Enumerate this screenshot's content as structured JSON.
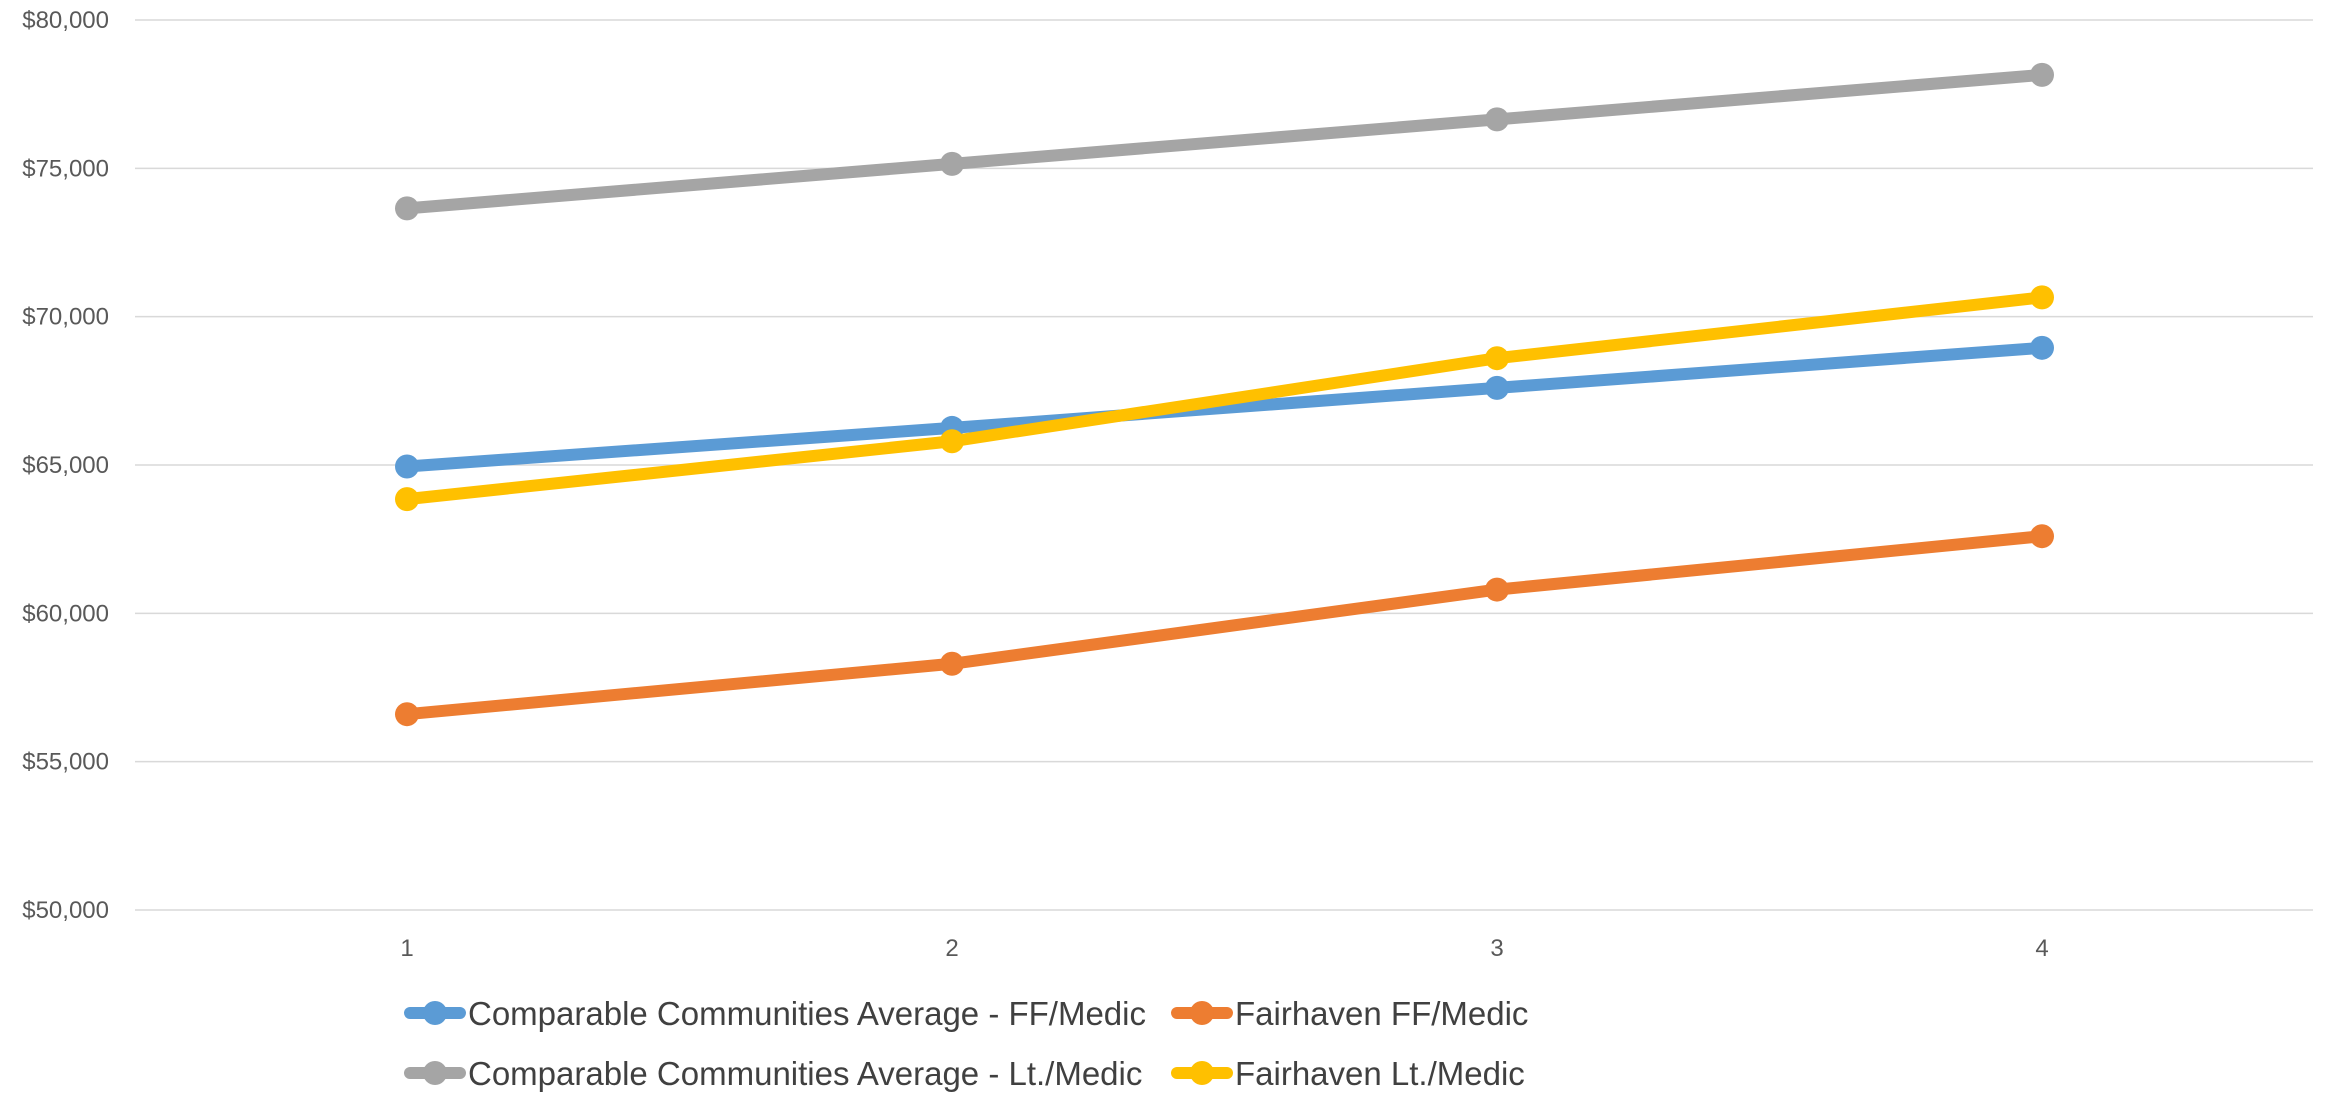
{
  "chart_data": {
    "type": "line",
    "title": "",
    "xlabel": "",
    "ylabel": "",
    "categories": [
      "1",
      "2",
      "3",
      "4"
    ],
    "ylim": [
      50000,
      80000
    ],
    "y_ticks": [
      50000,
      55000,
      60000,
      65000,
      70000,
      75000,
      80000
    ],
    "y_tick_labels": [
      "$50,000",
      "$55,000",
      "$60,000",
      "$65,000",
      "$70,000",
      "$75,000",
      "$80,000"
    ],
    "grid": "horizontal",
    "legend_position": "bottom",
    "series": [
      {
        "name": "Comparable Communities Average - FF/Medic",
        "color": "#5B9BD5",
        "values": [
          64950,
          66250,
          67600,
          68950
        ]
      },
      {
        "name": "Fairhaven FF/Medic",
        "color": "#ED7D31",
        "values": [
          56600,
          58300,
          60800,
          62600
        ]
      },
      {
        "name": "Comparable Communities Average - Lt./Medic",
        "color": "#A5A5A5",
        "values": [
          73650,
          75150,
          76650,
          78150
        ]
      },
      {
        "name": "Fairhaven Lt./Medic",
        "color": "#FFC000",
        "values": [
          63850,
          65800,
          68600,
          70650
        ]
      }
    ]
  }
}
